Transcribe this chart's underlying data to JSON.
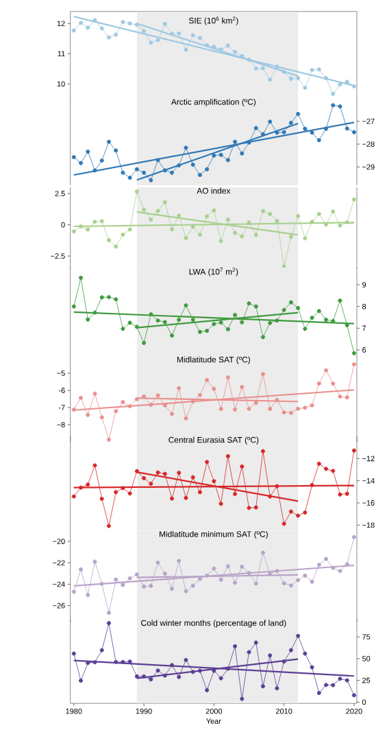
{
  "chart_data": [
    {
      "type": "line",
      "title": "SIE (10$^{6}$ km$^{2}$)",
      "x": [
        1980,
        1981,
        1982,
        1983,
        1984,
        1985,
        1986,
        1987,
        1988,
        1989,
        1990,
        1991,
        1992,
        1993,
        1994,
        1995,
        1996,
        1997,
        1998,
        1999,
        2000,
        2001,
        2002,
        2003,
        2004,
        2005,
        2006,
        2007,
        2008,
        2009,
        2010,
        2011,
        2012,
        2013,
        2014,
        2015,
        2016,
        2017,
        2018,
        2019,
        2020
      ],
      "xlim": [
        1979.5,
        2020.4
      ],
      "ylim": [
        9.5,
        12.4
      ],
      "yticks": [
        10,
        11,
        12
      ],
      "tick_labels": "y",
      "bands": [
        {
          "axis": "x",
          "from": 1989,
          "to": 2012,
          "color": "#ececec"
        }
      ],
      "series": [
        {
          "marker": "circle",
          "color": "#9ec9e2",
          "values": [
            11.77,
            12.02,
            11.86,
            12.11,
            11.84,
            11.54,
            11.63,
            12.05,
            12.0,
            11.96,
            11.75,
            11.37,
            11.45,
            11.99,
            11.66,
            11.67,
            11.13,
            11.61,
            11.52,
            11.28,
            11.23,
            11.14,
            11.27,
            11.06,
            10.92,
            10.8,
            10.51,
            10.52,
            10.14,
            10.57,
            10.4,
            10.17,
            10.19,
            9.87,
            10.46,
            10.48,
            10.19,
            9.67,
            9.98,
            10.07,
            9.92
          ]
        },
        {
          "marker": "none",
          "color": "#9ec9e2",
          "x": [
            1980,
            2020
          ],
          "values": [
            12.23,
            9.94
          ]
        },
        {
          "marker": "none",
          "color": "#9ec9e2",
          "x": [
            1989,
            2012
          ],
          "values": [
            12.0,
            10.26
          ]
        }
      ]
    },
    {
      "type": "line",
      "title": "Arctic amplification (ºC)",
      "x": [
        1980,
        1981,
        1982,
        1983,
        1984,
        1985,
        1986,
        1987,
        1988,
        1989,
        1990,
        1991,
        1992,
        1993,
        1994,
        1995,
        1996,
        1997,
        1998,
        1999,
        2000,
        2001,
        2002,
        2003,
        2004,
        2005,
        2006,
        2007,
        2008,
        2009,
        2010,
        2011,
        2012,
        2013,
        2014,
        2015,
        2016,
        2017,
        2018,
        2019,
        2020
      ],
      "xlim": [
        1979.5,
        2020.4
      ],
      "y2lim": [
        -29.8,
        -26.0
      ],
      "y2ticks": [
        {
          "value": -29,
          "label": "−29"
        },
        {
          "value": -28,
          "label": "−28"
        },
        {
          "value": -27,
          "label": "−27"
        }
      ],
      "tick_labels": "y2",
      "bands": [
        {
          "axis": "x",
          "from": 1989,
          "to": 2012,
          "color": "#ececec"
        }
      ],
      "series": [
        {
          "marker": "circle",
          "axis": "y2",
          "color": "#2f78b5",
          "values": [
            -28.57,
            -28.83,
            -28.33,
            -29.15,
            -28.72,
            -27.9,
            -28.28,
            -29.25,
            -29.47,
            -29.1,
            -29.25,
            -29.58,
            -28.7,
            -29.15,
            -29.25,
            -28.93,
            -28.16,
            -28.9,
            -29.35,
            -29.1,
            -28.5,
            -28.47,
            -28.7,
            -27.9,
            -28.41,
            -27.93,
            -27.3,
            -27.57,
            -27.02,
            -27.5,
            -27.48,
            -27.07,
            -26.68,
            -27.33,
            -27.5,
            -27.83,
            -27.33,
            -26.3,
            -26.35,
            -27.32,
            -27.48
          ]
        },
        {
          "marker": "none",
          "axis": "y2",
          "color": "#2f78b5",
          "x": [
            1980,
            2020
          ],
          "values": [
            -29.35,
            -27.05
          ]
        },
        {
          "marker": "none",
          "axis": "y2",
          "color": "#2f78b5",
          "x": [
            1989,
            2012
          ],
          "values": [
            -29.57,
            -27.1
          ]
        }
      ]
    },
    {
      "type": "line",
      "title": "AO index",
      "x": [
        1980,
        1981,
        1982,
        1983,
        1984,
        1985,
        1986,
        1987,
        1988,
        1989,
        1990,
        1991,
        1992,
        1993,
        1994,
        1995,
        1996,
        1997,
        1998,
        1999,
        2000,
        2001,
        2002,
        2003,
        2004,
        2005,
        2006,
        2007,
        2008,
        2009,
        2010,
        2011,
        2012,
        2013,
        2014,
        2015,
        2016,
        2017,
        2018,
        2019,
        2020
      ],
      "xlim": [
        1979.5,
        2020.4
      ],
      "ylim": [
        -3.5,
        3.0
      ],
      "yticks": [
        {
          "value": -2.5,
          "label": "−2.5"
        },
        0,
        2.5
      ],
      "tick_labels": "y",
      "bands": [
        {
          "axis": "x",
          "from": 1989,
          "to": 2012,
          "color": "#ececec"
        }
      ],
      "series": [
        {
          "marker": "circle",
          "color": "#a9d08e",
          "values": [
            -0.53,
            -0.13,
            -0.38,
            0.24,
            0.29,
            -1.23,
            -1.74,
            -0.79,
            -0.38,
            2.66,
            1.21,
            0.42,
            1.1,
            1.81,
            -0.37,
            0.73,
            -1.06,
            -0.15,
            -0.79,
            0.68,
            1.15,
            -1.3,
            0.42,
            -0.64,
            -0.92,
            0.18,
            -0.81,
            1.1,
            0.86,
            0.31,
            -3.33,
            -0.97,
            0.7,
            -1.08,
            0.24,
            0.86,
            0.02,
            1.06,
            -0.05,
            0.2,
            2.03
          ]
        },
        {
          "marker": "none",
          "color": "#a9d08e",
          "x": [
            1980,
            2020
          ],
          "values": [
            -0.13,
            0.18
          ]
        },
        {
          "marker": "none",
          "color": "#a9d08e",
          "x": [
            1989,
            2012
          ],
          "values": [
            1.03,
            -0.81
          ]
        }
      ]
    },
    {
      "type": "line",
      "title": "LWA (10$^{7}$ m$^{2}$)",
      "x": [
        1980,
        1981,
        1982,
        1983,
        1984,
        1985,
        1986,
        1987,
        1988,
        1989,
        1990,
        1991,
        1992,
        1993,
        1994,
        1995,
        1996,
        1997,
        1998,
        1999,
        2000,
        2001,
        2002,
        2003,
        2004,
        2005,
        2006,
        2007,
        2008,
        2009,
        2010,
        2011,
        2012,
        2013,
        2014,
        2015,
        2016,
        2017,
        2018,
        2019,
        2020
      ],
      "xlim": [
        1979.5,
        2020.4
      ],
      "y2lim": [
        5.7,
        9.8
      ],
      "y2ticks": [
        6,
        7,
        8,
        9
      ],
      "tick_labels": "y2",
      "bands": [
        {
          "axis": "x",
          "from": 1989,
          "to": 2012,
          "color": "#ececec"
        }
      ],
      "series": [
        {
          "marker": "circle",
          "axis": "y2",
          "color": "#3f9a3f",
          "values": [
            8.0,
            9.32,
            7.4,
            7.72,
            8.42,
            8.43,
            8.33,
            6.97,
            7.25,
            7.06,
            6.32,
            7.64,
            7.35,
            7.28,
            6.66,
            7.39,
            8.05,
            7.39,
            6.83,
            6.88,
            7.19,
            7.26,
            6.95,
            7.61,
            7.27,
            8.14,
            8.0,
            6.59,
            7.24,
            7.35,
            7.84,
            8.19,
            7.93,
            6.97,
            7.48,
            7.79,
            7.39,
            7.33,
            8.27,
            7.14,
            5.85
          ]
        },
        {
          "marker": "none",
          "axis": "y2",
          "color": "#3f9a3f",
          "x": [
            1980,
            2020
          ],
          "values": [
            7.74,
            7.21
          ]
        },
        {
          "marker": "none",
          "axis": "y2",
          "color": "#3f9a3f",
          "x": [
            1989,
            2012
          ],
          "values": [
            7.02,
            7.72
          ]
        }
      ]
    },
    {
      "type": "line",
      "title": "Midlatitude SAT (ºC)",
      "x": [
        1980,
        1981,
        1982,
        1983,
        1984,
        1985,
        1986,
        1987,
        1988,
        1989,
        1990,
        1991,
        1992,
        1993,
        1994,
        1995,
        1996,
        1997,
        1998,
        1999,
        2000,
        2001,
        2002,
        2003,
        2004,
        2005,
        2006,
        2007,
        2008,
        2009,
        2010,
        2011,
        2012,
        2013,
        2014,
        2015,
        2016,
        2017,
        2018,
        2019,
        2020
      ],
      "xlim": [
        1979.5,
        2020.4
      ],
      "ylim": [
        -9.0,
        -4.0
      ],
      "yticks": [
        {
          "value": -8,
          "label": "−8"
        },
        -7,
        -6,
        {
          "value": -5,
          "label": "−5"
        }
      ],
      "tick_labels": "y",
      "bands": [
        {
          "axis": "x",
          "from": 1989,
          "to": 2012,
          "color": "#ececec"
        }
      ],
      "series": [
        {
          "marker": "circle",
          "color": "#e8908e",
          "values": [
            -7.12,
            -6.43,
            -7.43,
            -6.19,
            -7.57,
            -8.87,
            -7.21,
            -6.68,
            -6.92,
            -6.51,
            -6.35,
            -6.84,
            -6.29,
            -6.87,
            -7.37,
            -5.87,
            -7.63,
            -6.65,
            -6.27,
            -5.4,
            -5.91,
            -7.08,
            -5.24,
            -7.11,
            -5.8,
            -7.07,
            -6.73,
            -5.05,
            -7.08,
            -6.56,
            -7.28,
            -7.31,
            -7.07,
            -7.01,
            -6.87,
            -5.6,
            -4.83,
            -5.6,
            -6.36,
            -6.41,
            -4.48
          ]
        },
        {
          "marker": "none",
          "color": "#e8908e",
          "x": [
            1980,
            2020
          ],
          "values": [
            -7.15,
            -5.97
          ]
        },
        {
          "marker": "none",
          "color": "#e8908e",
          "x": [
            1989,
            2012
          ],
          "values": [
            -6.45,
            -6.65
          ]
        }
      ]
    },
    {
      "type": "line",
      "title": "Central Eurasia SAT (ºC)",
      "x": [
        1980,
        1981,
        1982,
        1983,
        1984,
        1985,
        1986,
        1987,
        1988,
        1989,
        1990,
        1991,
        1992,
        1993,
        1994,
        1995,
        1996,
        1997,
        1998,
        1999,
        2000,
        2001,
        2002,
        2003,
        2004,
        2005,
        2006,
        2007,
        2008,
        2009,
        2010,
        2011,
        2012,
        2013,
        2014,
        2015,
        2016,
        2017,
        2018,
        2019,
        2020
      ],
      "xlim": [
        1979.5,
        2020.4
      ],
      "y2lim": [
        -18.5,
        -10.0
      ],
      "y2ticks": [
        {
          "value": -18,
          "label": "−18"
        },
        {
          "value": -16,
          "label": "−16"
        },
        {
          "value": -14,
          "label": "−14"
        },
        {
          "value": -12,
          "label": "−12"
        }
      ],
      "tick_labels": "y2",
      "bands": [
        {
          "axis": "x",
          "from": 1989,
          "to": 2012,
          "color": "#ececec"
        }
      ],
      "series": [
        {
          "marker": "circle",
          "axis": "y2",
          "color": "#d7282a",
          "values": [
            -15.42,
            -14.62,
            -14.35,
            -12.62,
            -15.63,
            -18.08,
            -15.03,
            -14.66,
            -15.15,
            -13.13,
            -13.77,
            -14.27,
            -13.26,
            -13.38,
            -15.61,
            -13.28,
            -15.55,
            -13.69,
            -15.03,
            -12.31,
            -14.04,
            -16.08,
            -11.79,
            -15.2,
            -12.72,
            -16.45,
            -16.41,
            -11.34,
            -15.42,
            -14.49,
            -17.88,
            -16.78,
            -17.15,
            -16.87,
            -14.39,
            -12.47,
            -12.93,
            -13.11,
            -15.24,
            -15.18,
            -11.28
          ]
        },
        {
          "marker": "none",
          "axis": "y2",
          "color": "#d7282a",
          "x": [
            1980,
            2020
          ],
          "values": [
            -14.62,
            -14.43
          ]
        },
        {
          "marker": "none",
          "axis": "y2",
          "color": "#d7282a",
          "x": [
            1989,
            2012
          ],
          "values": [
            -13.22,
            -15.84
          ]
        }
      ]
    },
    {
      "type": "line",
      "title": "Midlatitude minimum SAT (ºC)",
      "x": [
        1980,
        1981,
        1982,
        1983,
        1984,
        1985,
        1986,
        1987,
        1988,
        1989,
        1990,
        1991,
        1992,
        1993,
        1994,
        1995,
        1996,
        1997,
        1998,
        1999,
        2000,
        2001,
        2002,
        2003,
        2004,
        2005,
        2006,
        2007,
        2008,
        2009,
        2010,
        2011,
        2012,
        2013,
        2014,
        2015,
        2016,
        2017,
        2018,
        2019,
        2020
      ],
      "xlim": [
        1979.5,
        2020.4
      ],
      "ylim": [
        -27.5,
        -19.0
      ],
      "yticks": [
        {
          "value": -26,
          "label": "−26"
        },
        {
          "value": -24,
          "label": "−24"
        },
        {
          "value": -22,
          "label": "−22"
        },
        {
          "value": -20,
          "label": "−20"
        }
      ],
      "tick_labels": "y",
      "bands": [
        {
          "axis": "x",
          "from": 1989,
          "to": 2012,
          "color": "#ececec"
        }
      ],
      "series": [
        {
          "marker": "circle",
          "color": "#b8a3c9",
          "values": [
            -24.71,
            -22.62,
            -25.01,
            -21.9,
            -23.97,
            -26.67,
            -23.56,
            -24.07,
            -23.45,
            -23.09,
            -24.22,
            -24.16,
            -21.98,
            -23.01,
            -24.43,
            -21.83,
            -24.65,
            -24.14,
            -23.5,
            -23.2,
            -22.54,
            -23.58,
            -22.32,
            -23.86,
            -22.37,
            -22.96,
            -23.94,
            -21.07,
            -23.03,
            -22.77,
            -23.92,
            -24.12,
            -23.62,
            -23.2,
            -23.77,
            -22.2,
            -21.64,
            -22.47,
            -22.77,
            -22.13,
            -19.6
          ]
        },
        {
          "marker": "none",
          "color": "#b8a3c9",
          "x": [
            1980,
            2020
          ],
          "values": [
            -24.16,
            -22.24
          ]
        },
        {
          "marker": "none",
          "color": "#b8a3c9",
          "x": [
            1989,
            2012
          ],
          "values": [
            -23.37,
            -23.13
          ]
        }
      ]
    },
    {
      "type": "line",
      "title": "Cold winter months (percentage of land)",
      "xlabel": "Year",
      "x": [
        1980,
        1981,
        1982,
        1983,
        1984,
        1985,
        1986,
        1987,
        1988,
        1989,
        1990,
        1991,
        1992,
        1993,
        1994,
        1995,
        1996,
        1997,
        1998,
        1999,
        2000,
        2001,
        2002,
        2003,
        2004,
        2005,
        2006,
        2007,
        2008,
        2009,
        2010,
        2011,
        2012,
        2013,
        2014,
        2015,
        2016,
        2017,
        2018,
        2019,
        2020
      ],
      "xlim": [
        1979.5,
        2020.4
      ],
      "xticks": [
        1980,
        1990,
        2000,
        2010,
        2020
      ],
      "y2lim": [
        -1.5,
        95
      ],
      "y2ticks": [
        0,
        25,
        50,
        75
      ],
      "bands": [
        {
          "axis": "x",
          "from": 1989,
          "to": 2012,
          "color": "#ececec"
        }
      ],
      "series": [
        {
          "marker": "circle",
          "axis": "y2",
          "color": "#5b3f95",
          "values": [
            55.8,
            24.7,
            45.0,
            45.8,
            59.7,
            90.8,
            46.1,
            46.1,
            46.6,
            29.5,
            29.5,
            26.1,
            36.3,
            30.5,
            42.6,
            28.9,
            48.4,
            34.7,
            36.1,
            13.7,
            36.1,
            27.4,
            38.4,
            64.2,
            3.7,
            57.4,
            68.4,
            18.2,
            53.7,
            15.8,
            46.6,
            59.7,
            76.1,
            55.8,
            40.0,
            10.5,
            19.7,
            19.5,
            26.8,
            25.0,
            7.9
          ]
        },
        {
          "marker": "none",
          "axis": "y2",
          "color": "#5b3f95",
          "x": [
            1980,
            2020
          ],
          "values": [
            47.9,
            30.0
          ]
        },
        {
          "marker": "none",
          "axis": "y2",
          "color": "#5b3f95",
          "x": [
            1989,
            2012
          ],
          "values": [
            27.4,
            49.5
          ]
        }
      ]
    }
  ]
}
